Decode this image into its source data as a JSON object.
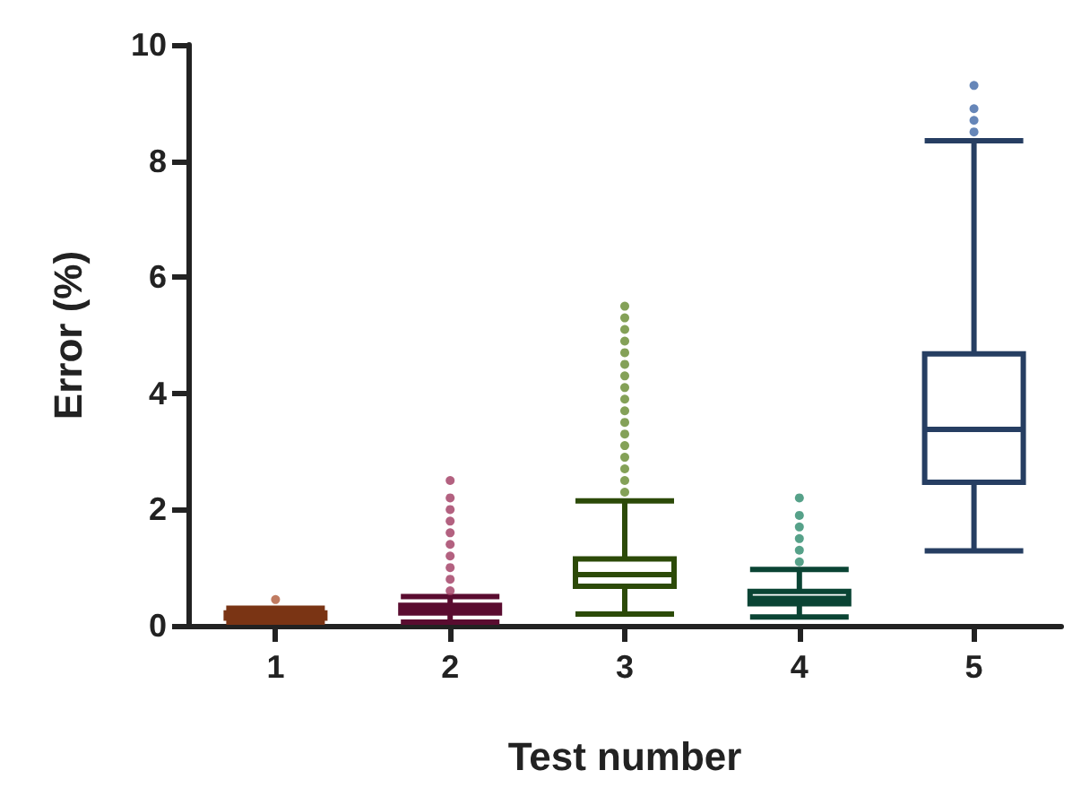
{
  "chart_data": {
    "type": "box",
    "xlabel": "Test number",
    "ylabel": "Error (%)",
    "categories": [
      "1",
      "2",
      "3",
      "4",
      "5"
    ],
    "ylim": [
      0,
      10
    ],
    "yticks": [
      0,
      2,
      4,
      6,
      8,
      10
    ],
    "grid": false,
    "series": [
      {
        "colors": [
          "#7a3414",
          "#5a0c30",
          "#2c4a08",
          "#0a4434",
          "#263e62"
        ],
        "boxes": [
          {
            "low": 0.06,
            "q1": 0.13,
            "median": 0.17,
            "q3": 0.22,
            "high": 0.3
          },
          {
            "low": 0.06,
            "q1": 0.22,
            "median": 0.29,
            "q3": 0.35,
            "high": 0.5
          },
          {
            "low": 0.2,
            "q1": 0.68,
            "median": 0.88,
            "q3": 1.15,
            "high": 2.15
          },
          {
            "low": 0.15,
            "q1": 0.38,
            "median": 0.47,
            "q3": 0.59,
            "high": 0.97
          },
          {
            "low": 1.29,
            "q1": 2.47,
            "median": 3.38,
            "q3": 4.68,
            "high": 8.35
          }
        ]
      },
      {
        "type": "scatter",
        "color": "#b05a3a",
        "x": [
          "1"
        ],
        "values": [
          0.45
        ]
      },
      {
        "type": "scatter",
        "color": "#a03a60",
        "x": [
          "2",
          "2",
          "2",
          "2",
          "2",
          "2",
          "2",
          "2",
          "2",
          "2"
        ],
        "values": [
          0.6,
          0.8,
          1.0,
          1.2,
          1.4,
          1.6,
          1.8,
          2.0,
          2.2,
          2.5
        ]
      },
      {
        "type": "scatter",
        "color": "#658a2e",
        "x": [
          "3",
          "3",
          "3",
          "3",
          "3",
          "3",
          "3",
          "3",
          "3",
          "3",
          "3",
          "3",
          "3",
          "3",
          "3",
          "3",
          "3"
        ],
        "values": [
          2.3,
          2.5,
          2.7,
          2.9,
          3.1,
          3.3,
          3.5,
          3.7,
          3.9,
          4.1,
          4.3,
          4.5,
          4.7,
          4.9,
          5.1,
          5.3,
          5.5
        ]
      },
      {
        "type": "scatter",
        "color": "#2c8a6c",
        "x": [
          "4",
          "4",
          "4",
          "4",
          "4",
          "4"
        ],
        "values": [
          1.1,
          1.3,
          1.5,
          1.7,
          1.9,
          2.2
        ]
      },
      {
        "type": "scatter",
        "color": "#4068a6",
        "x": [
          "5",
          "5",
          "5",
          "5"
        ],
        "values": [
          8.5,
          8.7,
          8.9,
          9.3
        ]
      }
    ]
  }
}
